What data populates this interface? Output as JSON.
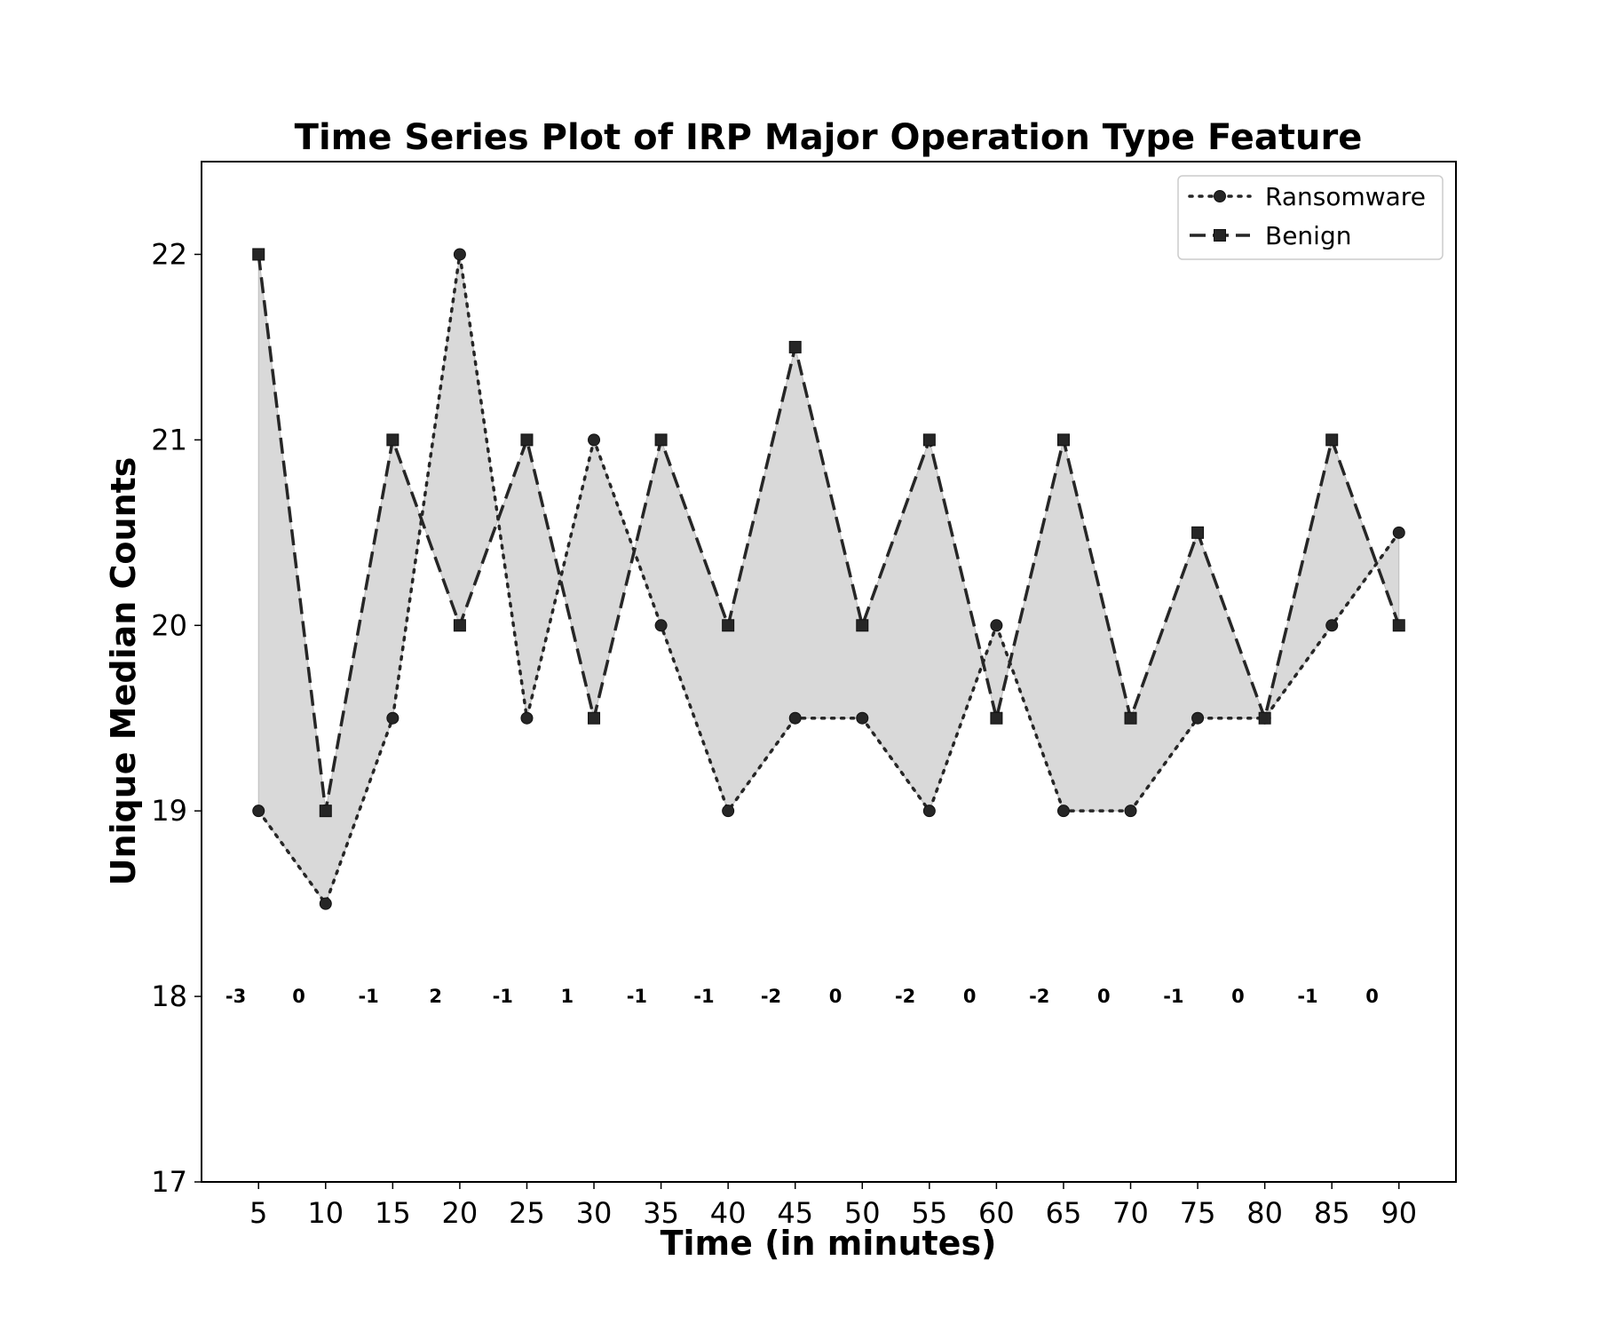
{
  "chart_data": {
    "type": "line",
    "title": "Time Series Plot of IRP Major Operation Type Feature",
    "xlabel": "Time (in minutes)",
    "ylabel": "Unique Median Counts",
    "x": [
      5,
      10,
      15,
      20,
      25,
      30,
      35,
      40,
      45,
      50,
      55,
      60,
      65,
      70,
      75,
      80,
      85,
      90
    ],
    "xlim": [
      0.75,
      94.25
    ],
    "ylim": [
      17,
      22.5
    ],
    "yticks": [
      17,
      18,
      19,
      20,
      21,
      22
    ],
    "series": [
      {
        "name": "Ransomware",
        "marker": "circle",
        "linestyle": "dotted",
        "values": [
          19,
          18.5,
          19.5,
          22,
          19.5,
          21,
          20,
          19,
          19.5,
          19.5,
          19,
          20,
          19,
          19,
          19.5,
          19.5,
          20,
          20.5
        ]
      },
      {
        "name": "Benign",
        "marker": "square",
        "linestyle": "dashed",
        "values": [
          22,
          19,
          21,
          20,
          21,
          19.5,
          21,
          20,
          21.5,
          20,
          21,
          19.5,
          21,
          19.5,
          20.5,
          19.5,
          21,
          20
        ]
      }
    ],
    "fill_between": {
      "series": [
        "Ransomware",
        "Benign"
      ],
      "color": "#d9d9d9"
    },
    "annotations": {
      "y": 18,
      "items": [
        {
          "x": 3.3,
          "text": "-3"
        },
        {
          "x": 8,
          "text": "0"
        },
        {
          "x": 13.2,
          "text": "-1"
        },
        {
          "x": 18.2,
          "text": "2"
        },
        {
          "x": 23.2,
          "text": "-1"
        },
        {
          "x": 28,
          "text": "1"
        },
        {
          "x": 33.2,
          "text": "-1"
        },
        {
          "x": 38.2,
          "text": "-1"
        },
        {
          "x": 43.2,
          "text": "-2"
        },
        {
          "x": 48,
          "text": "0"
        },
        {
          "x": 53.2,
          "text": "-2"
        },
        {
          "x": 58,
          "text": "0"
        },
        {
          "x": 63.2,
          "text": "-2"
        },
        {
          "x": 68,
          "text": "0"
        },
        {
          "x": 73.2,
          "text": "-1"
        },
        {
          "x": 78,
          "text": "0"
        },
        {
          "x": 83.2,
          "text": "-1"
        },
        {
          "x": 88,
          "text": "0"
        }
      ]
    },
    "legend": {
      "position": "top-right"
    },
    "grid": false,
    "colors": {
      "line": "#262626",
      "fill": "#d9d9d9",
      "axes": "#000000"
    }
  }
}
